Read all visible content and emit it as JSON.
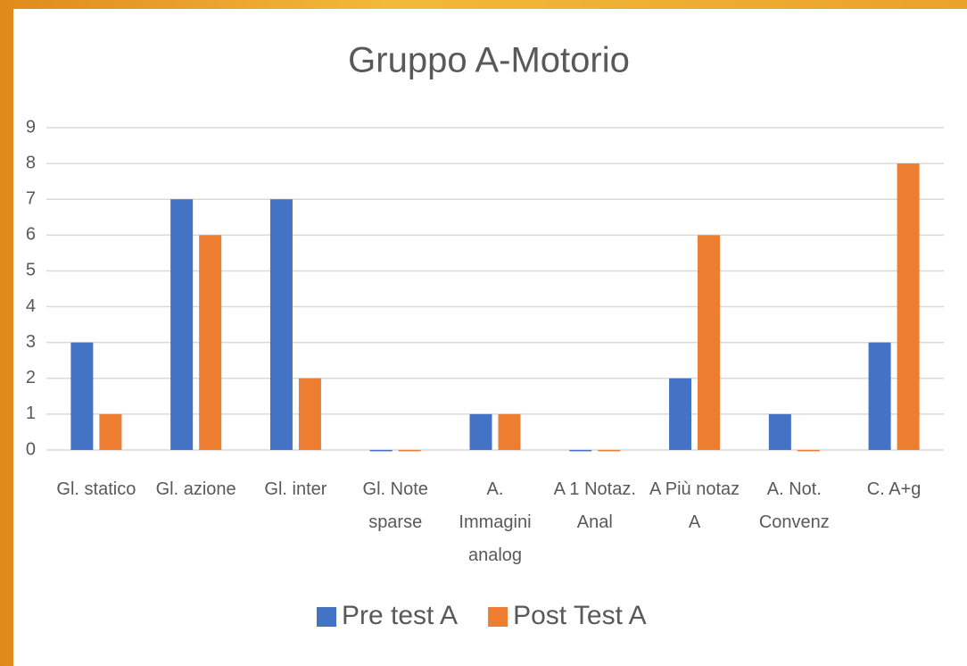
{
  "chart_data": {
    "type": "bar",
    "title": "Gruppo A-Motorio",
    "categories": [
      "Gl. statico",
      "Gl. azione",
      "Gl. inter",
      "Gl. Note sparse",
      "A. Immagini analog",
      "A 1 Notaz. Anal",
      "A Più notaz A",
      "A. Not. Convenz",
      "C. A+g"
    ],
    "series": [
      {
        "name": "Pre test A",
        "color": "#4472c4",
        "values": [
          3,
          7,
          7,
          0,
          1,
          0,
          2,
          1,
          3
        ]
      },
      {
        "name": "Post Test A",
        "color": "#ed7d31",
        "values": [
          1,
          6,
          2,
          0,
          1,
          0,
          6,
          0,
          8
        ]
      }
    ],
    "ylim": [
      0,
      9
    ],
    "yticks": [
      0,
      1,
      2,
      3,
      4,
      5,
      6,
      7,
      8,
      9
    ],
    "grid": true,
    "legend": "bottom"
  }
}
